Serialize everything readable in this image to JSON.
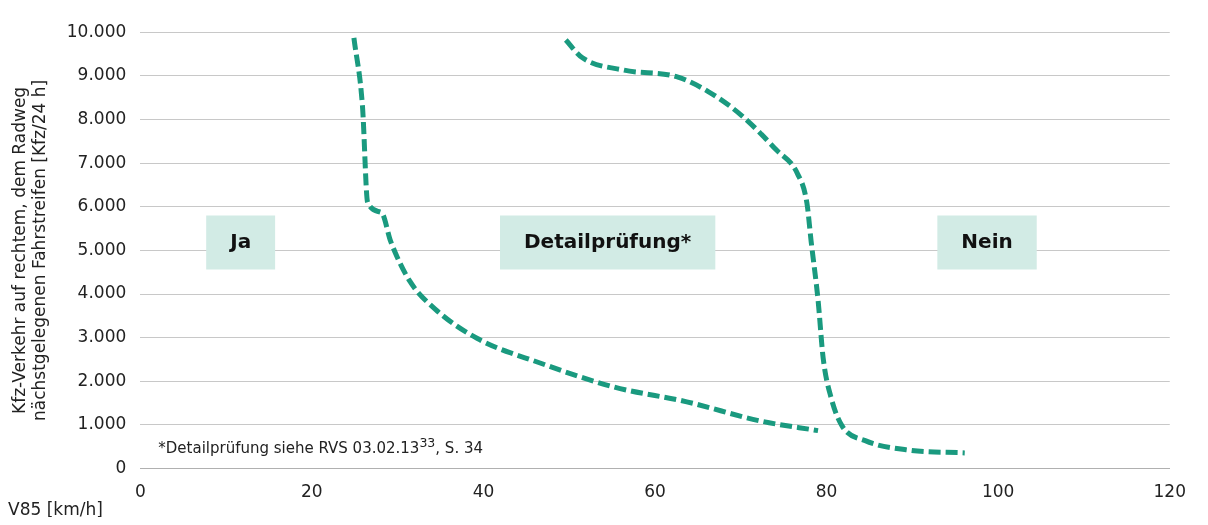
{
  "chart_data": {
    "type": "line",
    "xlabel": "V85 [km/h]",
    "ylabel": "Kfz-Verkehr auf rechtem, dem Radweg nächstgelegenen Fahrstreifen [Kfz/24 h]",
    "xlim": [
      0,
      120
    ],
    "xticks": [
      0,
      20,
      40,
      60,
      80,
      100,
      120
    ],
    "ylim": [
      0,
      10000
    ],
    "yticks": [
      {
        "value": 0,
        "label": "0"
      },
      {
        "value": 1000,
        "label": "1.000"
      },
      {
        "value": 2000,
        "label": "2.000"
      },
      {
        "value": 3000,
        "label": "3.000"
      },
      {
        "value": 4000,
        "label": "4.000"
      },
      {
        "value": 5000,
        "label": "5.000"
      },
      {
        "value": 6000,
        "label": "6.000"
      },
      {
        "value": 7000,
        "label": "7.000"
      },
      {
        "value": 8000,
        "label": "8.000"
      },
      {
        "value": 9000,
        "label": "9.000"
      },
      {
        "value": 10000,
        "label": "10.000"
      }
    ],
    "grid": "y",
    "legend": false,
    "line_style": "dashed",
    "marker": "none",
    "series": [
      {
        "color": "#1a9a7f",
        "x": [
          24.9,
          25.9,
          26.5,
          28.1,
          29.2,
          31.4,
          34.4,
          39.3,
          46.6,
          55.2,
          63.7,
          72.3,
          79
        ],
        "values": [
          9870,
          8300,
          6100,
          5870,
          5200,
          4300,
          3650,
          2980,
          2420,
          1870,
          1530,
          1090,
          870
        ]
      },
      {
        "color": "#1a9a7f",
        "x": [
          49.6,
          51.5,
          56.4,
          62.5,
          66.2,
          70.1,
          74.1,
          76.6,
          77.7,
          78.2,
          79,
          79.6,
          80.5,
          81.8,
          84.5,
          89.7,
          96.1
        ],
        "values": [
          9820,
          9420,
          9130,
          8980,
          8640,
          8090,
          7310,
          6760,
          6090,
          5200,
          3870,
          2530,
          1640,
          980,
          640,
          420,
          360
        ]
      }
    ],
    "annotations": [
      "Ja",
      "Detailprüfung*",
      "Nein",
      "*Detailprüfung siehe RVS 03.02.13$^{33}$, S. 34"
    ]
  }
}
